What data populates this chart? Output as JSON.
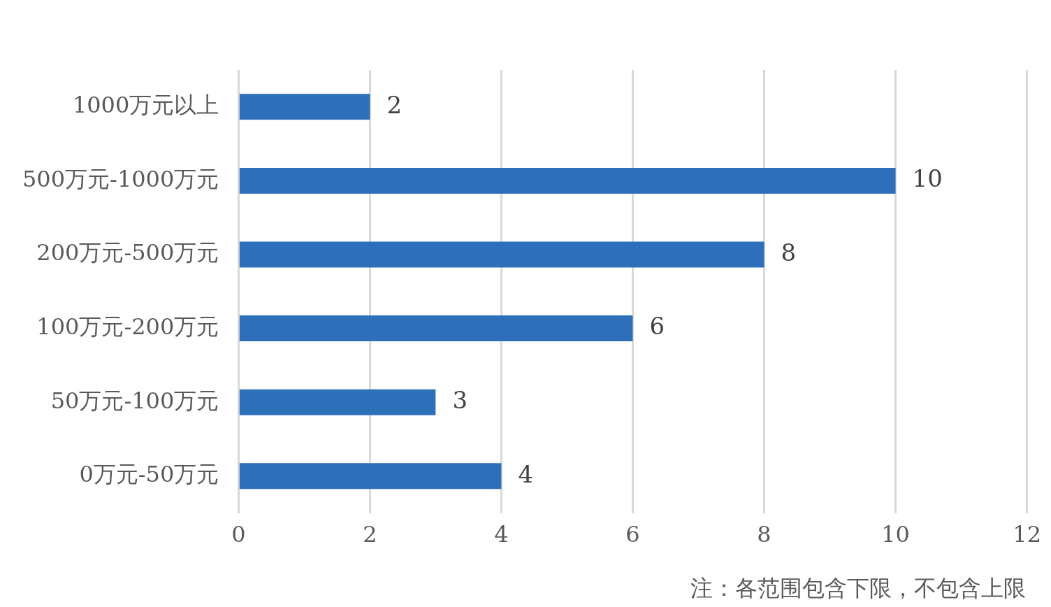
{
  "chart_data": {
    "type": "bar",
    "orientation": "horizontal",
    "categories": [
      "1000万元以上",
      "500万元-1000万元",
      "200万元-500万元",
      "100万元-200万元",
      "50万元-100万元",
      "0万元-50万元"
    ],
    "values": [
      2,
      10,
      8,
      6,
      3,
      4
    ],
    "color": "#2e6fba",
    "xlim": [
      0,
      12
    ],
    "xticks": [
      0,
      2,
      4,
      6,
      8,
      10,
      12
    ],
    "grid": "x",
    "data_labels": true,
    "annotations": [
      "注：各范围包含下限，不包含上限"
    ]
  }
}
